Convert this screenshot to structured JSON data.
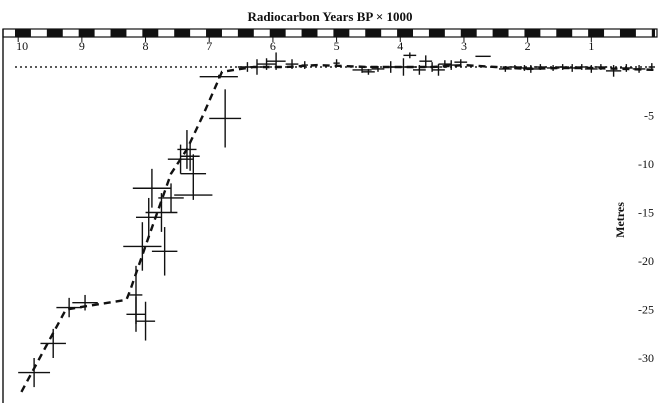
{
  "chart_data": {
    "type": "scatter",
    "title": "Radiocarbon Years BP × 1000",
    "xlabel": "",
    "ylabel": "Metres",
    "x_axis_position": "top",
    "x_reversed": true,
    "xlim": [
      10.05,
      0
    ],
    "ylim": [
      -33.5,
      0.7
    ],
    "xticks": [
      10,
      9,
      8,
      7,
      6,
      5,
      4,
      3,
      2,
      1
    ],
    "yticks": [
      -5,
      -10,
      -15,
      -20,
      -25,
      -30
    ],
    "y_axis_position": "right",
    "present_sea_level": 0,
    "present_sea_level_style": "dotted",
    "grid": false,
    "errorbar_points": [
      {
        "x": 9.75,
        "y": -31.5,
        "xerr": 0.25,
        "yerr": 1.5
      },
      {
        "x": 9.45,
        "y": -28.5,
        "xerr": 0.2,
        "yerr": 1.5
      },
      {
        "x": 9.2,
        "y": -24.8,
        "xerr": 0.2,
        "yerr": 1.0
      },
      {
        "x": 8.95,
        "y": -24.3,
        "xerr": 0.2,
        "yerr": 0.8
      },
      {
        "x": 8.15,
        "y": -25.5,
        "xerr": 0.15,
        "yerr": 1.8
      },
      {
        "x": 8.0,
        "y": -26.2,
        "xerr": 0.15,
        "yerr": 2.0
      },
      {
        "x": 8.15,
        "y": -23.5,
        "xerr": 0.1,
        "yerr": 3.0
      },
      {
        "x": 8.05,
        "y": -18.5,
        "xerr": 0.3,
        "yerr": 2.5
      },
      {
        "x": 7.95,
        "y": -15.5,
        "xerr": 0.2,
        "yerr": 2.0
      },
      {
        "x": 7.9,
        "y": -12.5,
        "xerr": 0.3,
        "yerr": 2.0
      },
      {
        "x": 7.75,
        "y": -15.0,
        "xerr": 0.25,
        "yerr": 2.0
      },
      {
        "x": 7.7,
        "y": -19.0,
        "xerr": 0.2,
        "yerr": 2.5
      },
      {
        "x": 7.6,
        "y": -13.5,
        "xerr": 0.2,
        "yerr": 1.5
      },
      {
        "x": 7.45,
        "y": -9.5,
        "xerr": 0.2,
        "yerr": 1.5
      },
      {
        "x": 7.35,
        "y": -8.5,
        "xerr": 0.15,
        "yerr": 2.0
      },
      {
        "x": 7.3,
        "y": -9.2,
        "xerr": 0.15,
        "yerr": 1.5
      },
      {
        "x": 7.25,
        "y": -11.0,
        "xerr": 0.2,
        "yerr": 2.0
      },
      {
        "x": 7.25,
        "y": -13.2,
        "xerr": 0.3,
        "yerr": 0.5
      },
      {
        "x": 6.85,
        "y": -1.0,
        "xerr": 0.3,
        "yerr": 0.2
      },
      {
        "x": 6.75,
        "y": -5.3,
        "xerr": 0.25,
        "yerr": 3.0
      },
      {
        "x": 6.4,
        "y": 0.0,
        "xerr": 0.15,
        "yerr": 0.5
      },
      {
        "x": 6.25,
        "y": 0.0,
        "xerr": 0.1,
        "yerr": 0.8
      },
      {
        "x": 6.1,
        "y": 0.3,
        "xerr": 0.15,
        "yerr": 0.6
      },
      {
        "x": 5.95,
        "y": 0.6,
        "xerr": 0.15,
        "yerr": 0.9
      },
      {
        "x": 5.7,
        "y": 0.3,
        "xerr": 0.1,
        "yerr": 0.5
      },
      {
        "x": 5.5,
        "y": 0.2,
        "xerr": 0.05,
        "yerr": 0.4
      },
      {
        "x": 5.0,
        "y": 0.4,
        "xerr": 0.05,
        "yerr": 0.4
      },
      {
        "x": 4.6,
        "y": -0.3,
        "xerr": 0.15,
        "yerr": 0.3
      },
      {
        "x": 4.5,
        "y": -0.5,
        "xerr": 0.1,
        "yerr": 0.3
      },
      {
        "x": 4.35,
        "y": -0.2,
        "xerr": 0.1,
        "yerr": 0.3
      },
      {
        "x": 4.15,
        "y": 0.0,
        "xerr": 0.1,
        "yerr": 0.6
      },
      {
        "x": 3.95,
        "y": 0.0,
        "xerr": 0.2,
        "yerr": 0.9
      },
      {
        "x": 3.85,
        "y": 1.2,
        "xerr": 0.1,
        "yerr": 0.3
      },
      {
        "x": 3.7,
        "y": -0.3,
        "xerr": 0.1,
        "yerr": 0.5
      },
      {
        "x": 3.6,
        "y": 0.6,
        "xerr": 0.1,
        "yerr": 0.6
      },
      {
        "x": 3.5,
        "y": 0.0,
        "xerr": 0.12,
        "yerr": 0.5
      },
      {
        "x": 3.4,
        "y": -0.3,
        "xerr": 0.1,
        "yerr": 0.6
      },
      {
        "x": 3.3,
        "y": 0.3,
        "xerr": 0.1,
        "yerr": 0.4
      },
      {
        "x": 3.2,
        "y": 0.2,
        "xerr": 0.1,
        "yerr": 0.5
      },
      {
        "x": 3.05,
        "y": 0.5,
        "xerr": 0.1,
        "yerr": 0.3
      },
      {
        "x": 2.7,
        "y": 1.1,
        "xerr": 0.12,
        "yerr": 0.0
      },
      {
        "x": 2.35,
        "y": -0.2,
        "xerr": 0.1,
        "yerr": 0.3
      },
      {
        "x": 2.2,
        "y": 0.0,
        "xerr": 0.1,
        "yerr": 0.2
      },
      {
        "x": 2.05,
        "y": -0.1,
        "xerr": 0.1,
        "yerr": 0.3
      },
      {
        "x": 1.95,
        "y": -0.2,
        "xerr": 0.12,
        "yerr": 0.4
      },
      {
        "x": 1.8,
        "y": 0.0,
        "xerr": 0.1,
        "yerr": 0.3
      },
      {
        "x": 1.6,
        "y": -0.1,
        "xerr": 0.1,
        "yerr": 0.3
      },
      {
        "x": 1.45,
        "y": 0.0,
        "xerr": 0.1,
        "yerr": 0.3
      },
      {
        "x": 1.3,
        "y": -0.1,
        "xerr": 0.1,
        "yerr": 0.4
      },
      {
        "x": 1.15,
        "y": 0.0,
        "xerr": 0.1,
        "yerr": 0.3
      },
      {
        "x": 1.0,
        "y": -0.2,
        "xerr": 0.1,
        "yerr": 0.4
      },
      {
        "x": 0.85,
        "y": 0.0,
        "xerr": 0.1,
        "yerr": 0.3
      },
      {
        "x": 0.65,
        "y": -0.4,
        "xerr": 0.12,
        "yerr": 0.6
      },
      {
        "x": 0.45,
        "y": -0.1,
        "xerr": 0.1,
        "yerr": 0.4
      },
      {
        "x": 0.25,
        "y": -0.2,
        "xerr": 0.1,
        "yerr": 0.4
      },
      {
        "x": 0.05,
        "y": 0.0,
        "xerr": 0.05,
        "yerr": 0.4
      }
    ],
    "trend_line": {
      "style": "dashed",
      "x": [
        9.95,
        9.25,
        8.3,
        8.25,
        7.95,
        7.6,
        7.35,
        7.1,
        6.8,
        6.3,
        5.8,
        5.3,
        4.9,
        4.5,
        4.0,
        3.5,
        3.0,
        2.5,
        2.0,
        1.5,
        1.0,
        0.5,
        0.0
      ],
      "y": [
        -33.5,
        -25.0,
        -24.0,
        -23.2,
        -17.5,
        -11.0,
        -8.5,
        -5.0,
        -0.5,
        0.0,
        0.0,
        0.2,
        0.1,
        0.0,
        0.0,
        0.0,
        0.2,
        0.0,
        -0.2,
        -0.1,
        -0.1,
        -0.2,
        -0.3
      ]
    }
  }
}
